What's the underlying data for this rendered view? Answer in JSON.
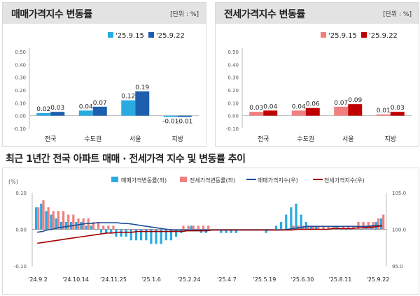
{
  "left_panel": {
    "title": "매매가격지수 변동률",
    "unit": "[단위 : %]"
  },
  "right_panel": {
    "title": "전세가격지수 변동률",
    "unit": "[단위 : %]"
  },
  "bottom_title": "최근 1년간 전국 아파트 매매 · 전세가격 지수 및 변동률 추이",
  "colors": {
    "light_blue": "#29abe2",
    "dark_blue": "#1d5fae",
    "light_red": "#f08080",
    "dark_red": "#c00000",
    "line_blue": "#1f4e99",
    "line_red": "#a00000"
  },
  "chart_data": [
    {
      "type": "bar",
      "categories": [
        "전국",
        "수도권",
        "서울",
        "지방"
      ],
      "series": [
        {
          "name": "'25.9.15",
          "values": [
            0.02,
            0.04,
            0.12,
            -0.01
          ]
        },
        {
          "name": "'25.9.22",
          "values": [
            0.03,
            0.07,
            0.19,
            -0.01
          ]
        }
      ],
      "data_labels": [
        [
          "0.02",
          "0.04",
          "0.12",
          "-0.01"
        ],
        [
          "0.03",
          "0.07",
          "0.19",
          "-0.01"
        ]
      ],
      "yticks": [
        "0.50",
        "0.40",
        "0.30",
        "0.20",
        "0.10",
        "0.00",
        "-0.10"
      ],
      "ylim": [
        -0.1,
        0.5
      ],
      "legend": "top-right"
    },
    {
      "type": "bar",
      "categories": [
        "전국",
        "수도권",
        "서울",
        "지방"
      ],
      "series": [
        {
          "name": "'25.9.15",
          "values": [
            0.03,
            0.04,
            0.07,
            0.01
          ]
        },
        {
          "name": "'25.9.22",
          "values": [
            0.04,
            0.06,
            0.09,
            0.03
          ]
        }
      ],
      "data_labels": [
        [
          "0.03",
          "0.04",
          "0.07",
          "0.01"
        ],
        [
          "0.04",
          "0.06",
          "0.09",
          "0.03"
        ]
      ],
      "yticks": [
        "0.50",
        "0.40",
        "0.30",
        "0.20",
        "0.10",
        "0.00",
        "-0.10"
      ],
      "ylim": [
        -0.1,
        0.5
      ],
      "legend": "top-right"
    },
    {
      "type": "bar+line",
      "y_left_unit": "(%)",
      "y_left_ticks": [
        "0.10",
        "0.00",
        "-0.10"
      ],
      "y_left_lim": [
        -0.1,
        0.1
      ],
      "y_right_ticks": [
        "105.0",
        "100.0",
        "95.0"
      ],
      "y_right_lim": [
        95.0,
        105.0
      ],
      "x_tick_labels": [
        "'24.9.2",
        "'24.10.14",
        "'24.11.25",
        "'25.1.6",
        "'25.2.24",
        "'25.4.7",
        "'25.5.19",
        "'25.6.30",
        "'25.8.11",
        "'25.9.22"
      ],
      "legend": [
        "매매가격변동률(좌)",
        "전세가격변동률(좌)",
        "매매가격지수(우)",
        "전세가격지수(우)"
      ],
      "sale_rate": [
        0.06,
        0.07,
        0.05,
        0.04,
        0.03,
        0.02,
        0.02,
        0.02,
        0.02,
        0.02,
        0.01,
        0.01,
        0.0,
        -0.01,
        -0.01,
        -0.01,
        -0.02,
        -0.02,
        -0.02,
        -0.03,
        -0.03,
        -0.03,
        -0.03,
        -0.04,
        -0.04,
        -0.04,
        -0.03,
        -0.03,
        -0.02,
        -0.01,
        0.0,
        0.01,
        0.0,
        -0.01,
        -0.01,
        0.0,
        0.0,
        -0.01,
        -0.01,
        -0.01,
        -0.01,
        0.0,
        0.0,
        0.0,
        0.0,
        0.0,
        -0.01,
        0.0,
        0.01,
        0.02,
        0.04,
        0.06,
        0.07,
        0.04,
        0.02,
        0.01,
        0.01,
        0.0,
        0.0,
        0.0,
        0.01,
        0.0,
        0.0,
        0.0,
        0.0,
        0.0,
        0.01,
        0.01,
        0.02,
        0.03
      ],
      "jeonse_rate": [
        0.06,
        0.08,
        0.06,
        0.05,
        0.05,
        0.05,
        0.04,
        0.04,
        0.03,
        0.03,
        0.03,
        0.02,
        0.02,
        0.01,
        0.01,
        0.01,
        0.0,
        0.0,
        0.0,
        0.0,
        0.0,
        0.0,
        0.0,
        0.0,
        0.0,
        0.0,
        0.0,
        0.0,
        0.0,
        0.01,
        0.01,
        0.01,
        0.01,
        0.01,
        0.01,
        0.0,
        0.0,
        0.0,
        0.0,
        0.0,
        0.0,
        0.0,
        0.0,
        0.0,
        0.0,
        0.0,
        0.0,
        0.0,
        0.0,
        0.0,
        0.0,
        0.01,
        0.01,
        0.01,
        0.01,
        0.01,
        0.01,
        0.01,
        0.01,
        0.01,
        0.01,
        0.01,
        0.01,
        0.01,
        0.02,
        0.02,
        0.02,
        0.02,
        0.03,
        0.04
      ],
      "sale_index": [
        99.6,
        99.7,
        99.9,
        100.0,
        100.2,
        100.3,
        100.4,
        100.5,
        100.6,
        100.7,
        100.8,
        100.8,
        100.9,
        100.9,
        100.9,
        100.9,
        100.9,
        100.8,
        100.8,
        100.7,
        100.6,
        100.5,
        100.4,
        100.3,
        100.2,
        100.1,
        100.0,
        99.9,
        99.9,
        99.9,
        99.9,
        99.9,
        99.9,
        99.9,
        99.9,
        99.9,
        99.9,
        99.9,
        99.9,
        99.9,
        99.9,
        99.9,
        99.9,
        99.9,
        99.9,
        99.9,
        99.9,
        99.9,
        99.9,
        99.9,
        100.0,
        100.1,
        100.2,
        100.3,
        100.4,
        100.4,
        100.4,
        100.4,
        100.4,
        100.4,
        100.4,
        100.4,
        100.4,
        100.4,
        100.4,
        100.4,
        100.4,
        100.5,
        100.5,
        100.5
      ],
      "jeonse_index": [
        98.1,
        98.2,
        98.3,
        98.4,
        98.5,
        98.6,
        98.7,
        98.8,
        98.9,
        99.0,
        99.1,
        99.2,
        99.3,
        99.4,
        99.5,
        99.5,
        99.6,
        99.6,
        99.6,
        99.6,
        99.7,
        99.7,
        99.7,
        99.7,
        99.7,
        99.7,
        99.7,
        99.7,
        99.7,
        99.7,
        99.8,
        99.8,
        99.8,
        99.8,
        99.8,
        99.9,
        99.9,
        99.9,
        99.9,
        99.9,
        99.9,
        99.9,
        99.9,
        99.9,
        99.9,
        99.9,
        99.9,
        99.9,
        99.9,
        99.9,
        99.9,
        99.9,
        100.0,
        100.0,
        100.0,
        100.0,
        100.0,
        100.0,
        100.0,
        100.1,
        100.1,
        100.1,
        100.1,
        100.1,
        100.2,
        100.2,
        100.3,
        100.3,
        100.4,
        100.5
      ]
    }
  ]
}
